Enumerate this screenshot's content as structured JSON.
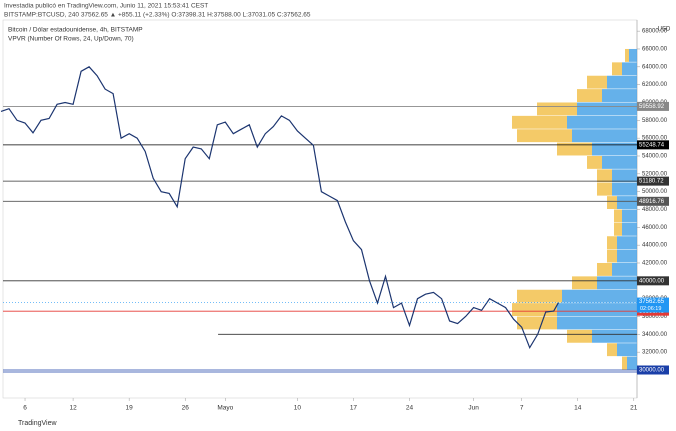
{
  "header": {
    "published": "Investadia publicó en TradingView.com, Junio 11, 2021 15:53:41 CEST",
    "quote": "BITSTAMP:BTCUSD, 240  37562.65  ▲ +855.11 (+2.33%)  O:37398.31  H:37588.00  L:37031.05  C:37562.65",
    "symbol": "Bitcoin / Dólar estadounidense, 4h, BITSTAMP",
    "indicator": "VPVR (Number Of Rows, 24, Up/Down, 70)",
    "currency": "USD",
    "footer": "TradingView"
  },
  "chart_data": {
    "type": "line",
    "series": [
      {
        "name": "BTCUSD",
        "color": "#1c3570",
        "x": [
          3,
          4,
          5,
          6,
          7,
          8,
          9,
          10,
          11,
          12,
          13,
          14,
          15,
          16,
          17,
          18,
          19,
          20,
          21,
          22,
          23,
          24,
          25,
          26,
          27,
          28,
          29,
          30,
          31,
          32,
          33,
          34,
          35,
          36,
          37,
          38,
          39,
          40,
          41,
          42,
          43,
          44,
          45,
          46,
          47,
          48,
          49,
          50,
          51,
          52,
          53,
          54,
          55,
          56,
          57,
          58,
          59,
          60,
          61,
          62,
          63,
          64,
          65,
          66,
          67,
          68,
          69,
          70,
          71,
          72,
          72.6
        ],
        "values": [
          59000,
          59300,
          58000,
          57700,
          56600,
          58000,
          58200,
          59800,
          60000,
          59800,
          63500,
          64000,
          63000,
          61500,
          61000,
          56000,
          56500,
          56000,
          54500,
          51500,
          50000,
          49800,
          48300,
          53700,
          55000,
          54800,
          53700,
          57500,
          57800,
          56500,
          57000,
          57500,
          55000,
          56500,
          57300,
          58500,
          58000,
          56800,
          56000,
          55200,
          50000,
          49500,
          49000,
          46600,
          44500,
          43500,
          40000,
          37500,
          40500,
          37000,
          37500,
          35000,
          38000,
          38500,
          38700,
          38000,
          35500,
          35200,
          36000,
          37000,
          36700,
          38000,
          37500,
          37000,
          35700,
          34800,
          32500,
          34000,
          36500,
          36600,
          37562.65
        ]
      }
    ],
    "xlim": [
      3.25,
      82.4
    ],
    "xticks": [
      {
        "value": 6,
        "label": "6"
      },
      {
        "value": 12,
        "label": "12"
      },
      {
        "value": 19,
        "label": "19"
      },
      {
        "value": 26,
        "label": "26"
      },
      {
        "value": 31,
        "label": "Mayo"
      },
      {
        "value": 40,
        "label": "10"
      },
      {
        "value": 47,
        "label": "17"
      },
      {
        "value": 54,
        "label": "24"
      },
      {
        "value": 62,
        "label": "Jun"
      },
      {
        "value": 68,
        "label": "7"
      },
      {
        "value": 75,
        "label": "14"
      },
      {
        "value": 82,
        "label": "21"
      }
    ],
    "ylim": [
      26860,
      69250
    ],
    "yticks": [
      {
        "value": 30000,
        "label": "30000.00"
      },
      {
        "value": 32000,
        "label": "32000.00"
      },
      {
        "value": 34000,
        "label": "34000.00"
      },
      {
        "value": 36000,
        "label": "36000.00"
      },
      {
        "value": 38000,
        "label": "38000.00"
      },
      {
        "value": 40000,
        "label": "40000.00"
      },
      {
        "value": 42000,
        "label": "42000.00"
      },
      {
        "value": 44000,
        "label": "44000.00"
      },
      {
        "value": 46000,
        "label": "46000.00"
      },
      {
        "value": 48000,
        "label": "48000.00"
      },
      {
        "value": 50000,
        "label": "50000.00"
      },
      {
        "value": 52000,
        "label": "52000.00"
      },
      {
        "value": 54000,
        "label": "54000.00"
      },
      {
        "value": 56000,
        "label": "56000.00"
      },
      {
        "value": 58000,
        "label": "58000.00"
      },
      {
        "value": 60000,
        "label": "60000.00"
      },
      {
        "value": 62000,
        "label": "62000.00"
      },
      {
        "value": 64000,
        "label": "64000.00"
      },
      {
        "value": 66000,
        "label": "66000.00"
      },
      {
        "value": 68000,
        "label": "68000.00"
      }
    ],
    "levels": [
      {
        "value": 59558.92,
        "label": "59558.92",
        "color": "#888888"
      },
      {
        "value": 55248.74,
        "label": "55248.74",
        "color": "#000000"
      },
      {
        "value": 51180.72,
        "label": "51180.72",
        "color": "#333333"
      },
      {
        "value": 48916.76,
        "label": "48916.76",
        "color": "#555555"
      },
      {
        "value": 40000,
        "label": "40000.00",
        "color": "#333333"
      },
      {
        "value": 36596.48,
        "label": "36596.48",
        "color": "#e53935"
      },
      {
        "value": 30000,
        "label": "30000.00",
        "color": "#1a3fa8"
      }
    ],
    "segment": {
      "value": 34000,
      "from_x": 30.1,
      "color": "#333333"
    },
    "last_price": {
      "value": 37562.65,
      "label": "37562.65",
      "countdown": "02:06:19",
      "color": "#2196f3"
    },
    "vpvr": {
      "bottom": 30000,
      "row": 1500,
      "up_color": "#4aa3e6",
      "down_color": "#f2c14e",
      "up": [
        10,
        20,
        45,
        80,
        80,
        75,
        40,
        25,
        20,
        20,
        15,
        15,
        20,
        25,
        25,
        35,
        45,
        65,
        70,
        60,
        35,
        30,
        15,
        8
      ],
      "down": [
        5,
        10,
        25,
        40,
        45,
        45,
        25,
        15,
        10,
        10,
        8,
        8,
        10,
        15,
        15,
        15,
        35,
        55,
        55,
        40,
        25,
        20,
        10,
        4
      ]
    }
  }
}
